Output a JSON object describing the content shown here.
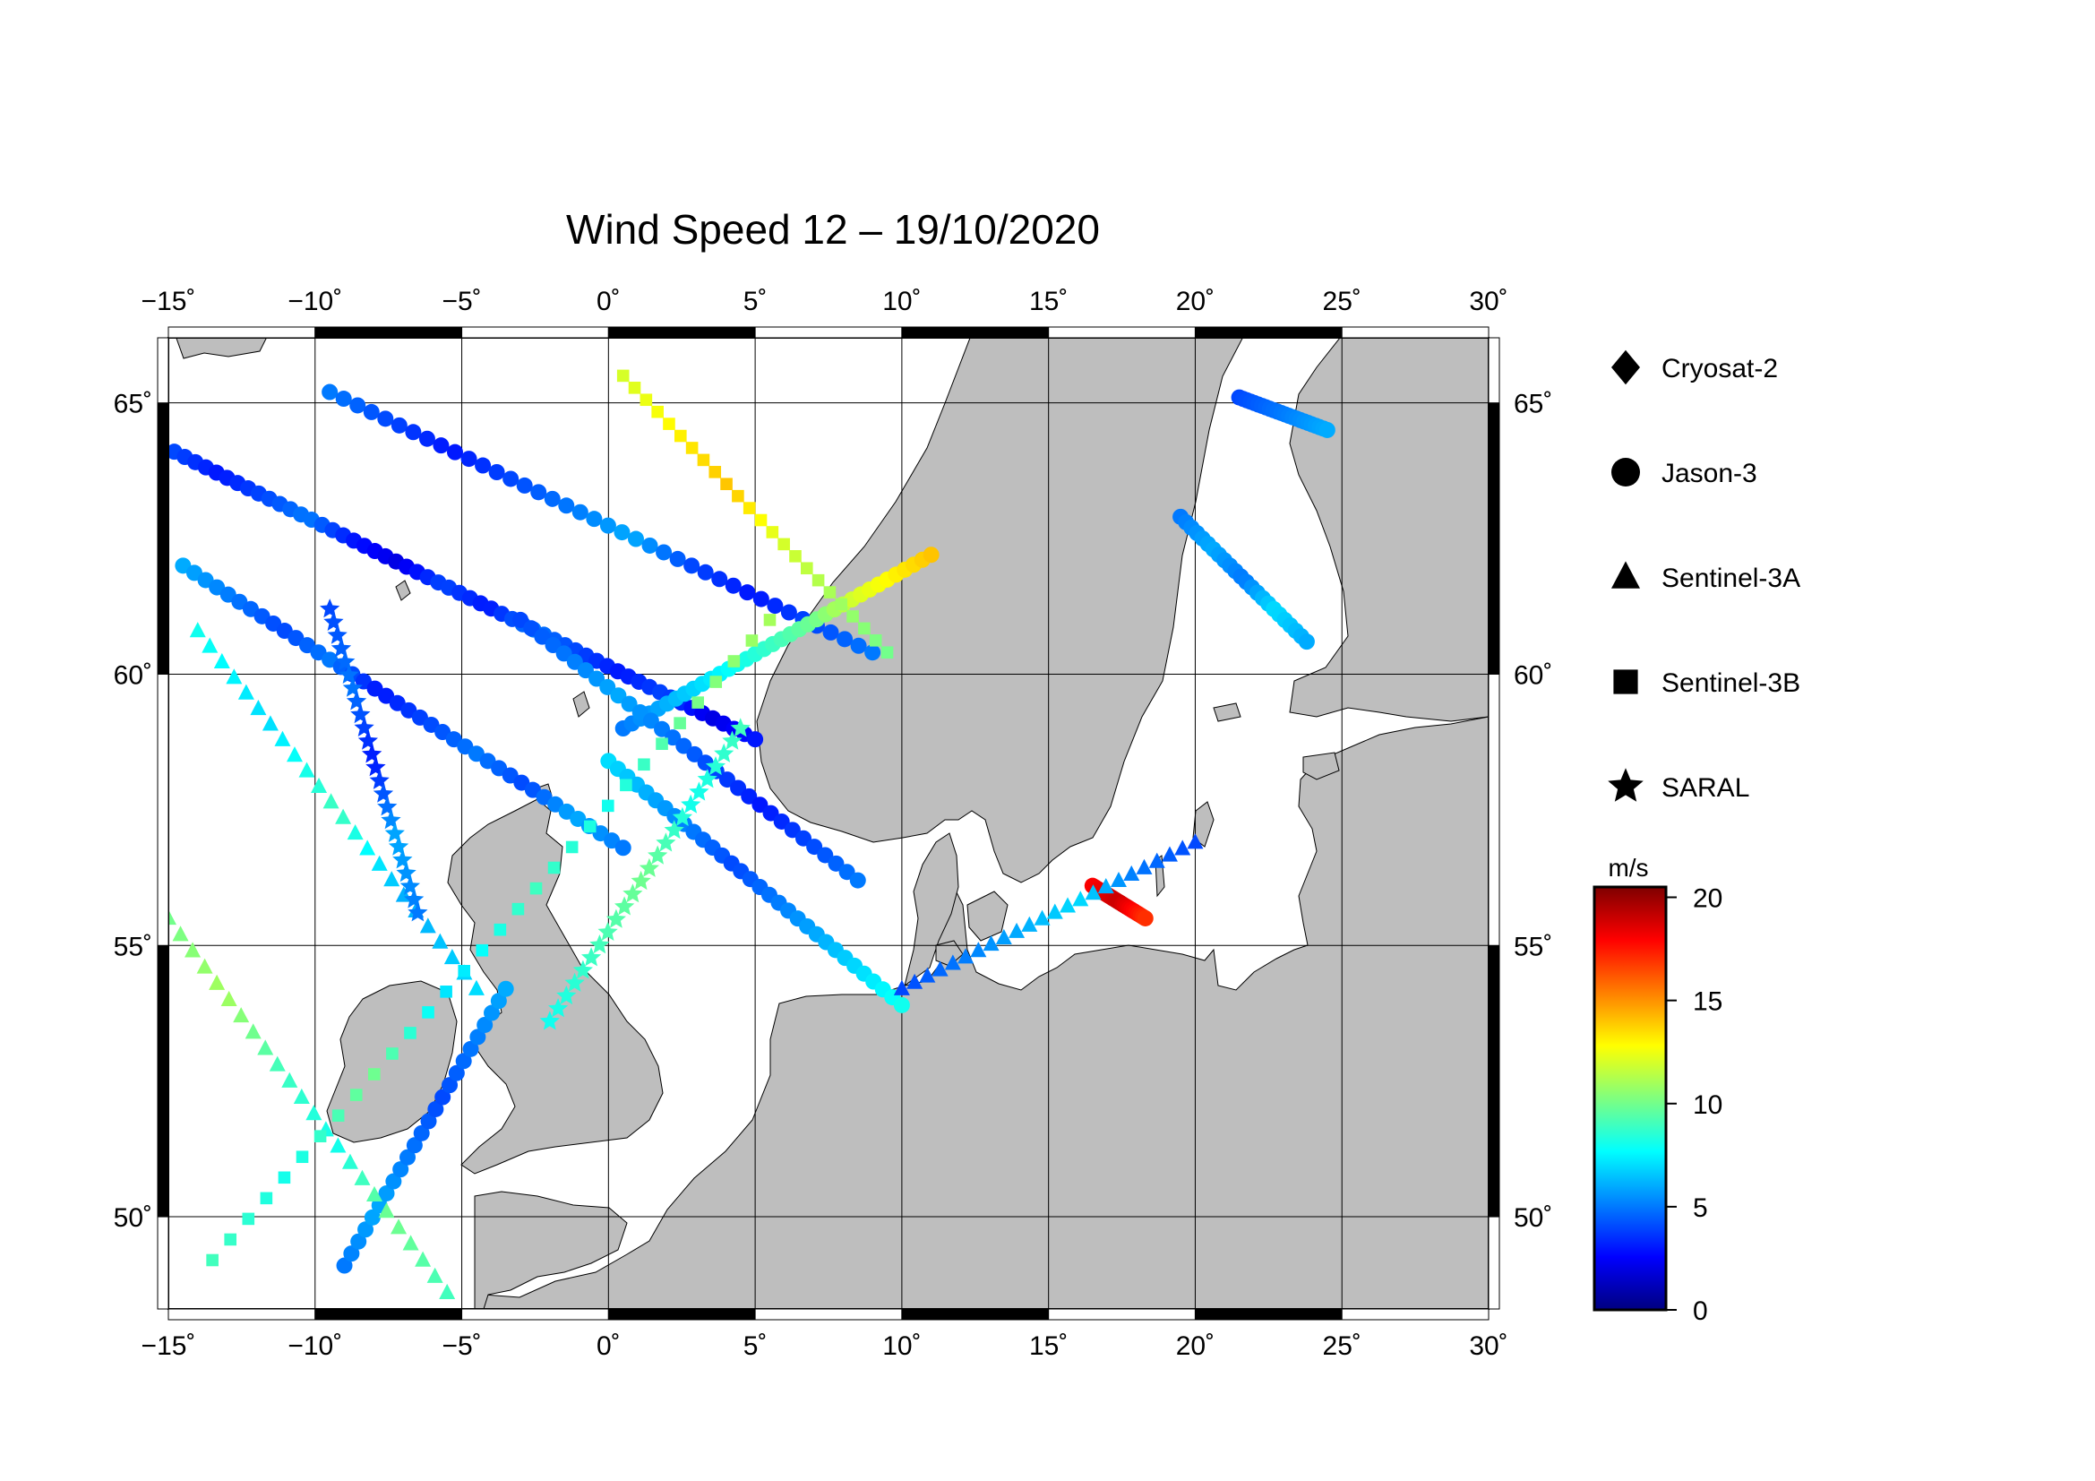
{
  "title": "Wind Speed 12 – 19/10/2020",
  "map": {
    "lon_range": [
      -15,
      30
    ],
    "lat_range": [
      48.3,
      66.2
    ],
    "lon_ticks": [
      {
        "value": -15,
        "label": "−15˚"
      },
      {
        "value": -10,
        "label": "−10˚"
      },
      {
        "value": -5,
        "label": "−5˚"
      },
      {
        "value": 0,
        "label": "0˚"
      },
      {
        "value": 5,
        "label": "5˚"
      },
      {
        "value": 10,
        "label": "10˚"
      },
      {
        "value": 15,
        "label": "15˚"
      },
      {
        "value": 20,
        "label": "20˚"
      },
      {
        "value": 25,
        "label": "25˚"
      },
      {
        "value": 30,
        "label": "30˚"
      }
    ],
    "lat_ticks": [
      {
        "value": 50,
        "label": "50˚"
      },
      {
        "value": 55,
        "label": "55˚"
      },
      {
        "value": 60,
        "label": "60˚"
      },
      {
        "value": 65,
        "label": "65˚"
      }
    ],
    "land_color": "#bebebe",
    "sea_color": "#ffffff",
    "grid": true
  },
  "legend": {
    "placement": "right",
    "items": [
      {
        "label": "Cryosat-2",
        "marker": "diamond"
      },
      {
        "label": "Jason-3",
        "marker": "circle"
      },
      {
        "label": "Sentinel-3A",
        "marker": "triangle"
      },
      {
        "label": "Sentinel-3B",
        "marker": "square"
      },
      {
        "label": "SARAL",
        "marker": "star"
      }
    ]
  },
  "colorbar": {
    "unit": "m/s",
    "range": [
      0,
      20.5
    ],
    "ticks": [
      {
        "value": 0,
        "label": "0"
      },
      {
        "value": 5,
        "label": "5"
      },
      {
        "value": 10,
        "label": "10"
      },
      {
        "value": 15,
        "label": "15"
      },
      {
        "value": 20,
        "label": "20"
      }
    ],
    "colormap": [
      "#00007f",
      "#0000ff",
      "#007fff",
      "#00ffff",
      "#7fff7f",
      "#ffff00",
      "#ff7f00",
      "#ff0000",
      "#7f0000"
    ]
  },
  "chart_data": {
    "type": "scatter",
    "title": "Wind Speed 12 – 19/10/2020",
    "x_axis": "longitude",
    "y_axis": "latitude",
    "color_variable": "wind speed (m/s)",
    "tracks": [
      {
        "satellite": "Jason-3",
        "marker": "circle",
        "lon": [
          -14.8,
          5.0
        ],
        "lat": [
          64.1,
          58.8
        ],
        "speeds": [
          4,
          3,
          4,
          5,
          3,
          2,
          4,
          3,
          5,
          4,
          3,
          4,
          2,
          3
        ]
      },
      {
        "satellite": "Jason-3",
        "marker": "circle",
        "lon": [
          -14.5,
          0.5
        ],
        "lat": [
          62.0,
          56.8
        ],
        "speeds": [
          6,
          5,
          4,
          5,
          3,
          4,
          5,
          4,
          6,
          5
        ]
      },
      {
        "satellite": "Jason-3",
        "marker": "circle",
        "lon": [
          -9.5,
          9.0
        ],
        "lat": [
          65.2,
          60.4
        ],
        "speeds": [
          5,
          4,
          3,
          4,
          5,
          6,
          4,
          3,
          4,
          5
        ]
      },
      {
        "satellite": "Jason-3",
        "marker": "circle",
        "lon": [
          0.5,
          11.0
        ],
        "lat": [
          59.0,
          62.2
        ],
        "speeds": [
          5,
          6,
          7,
          8,
          9,
          10,
          12,
          13,
          14
        ]
      },
      {
        "satellite": "Jason-3",
        "marker": "circle",
        "lon": [
          -3.0,
          8.5
        ],
        "lat": [
          61.0,
          56.2
        ],
        "speeds": [
          4,
          5,
          6,
          5,
          4,
          3,
          4,
          5
        ]
      },
      {
        "satellite": "Jason-3",
        "marker": "circle",
        "lon": [
          0.0,
          10.0
        ],
        "lat": [
          58.4,
          53.9
        ],
        "speeds": [
          7,
          6,
          5,
          4,
          5,
          6,
          7,
          8
        ]
      },
      {
        "satellite": "Jason-3",
        "marker": "circle",
        "lon": [
          -9.0,
          -3.5
        ],
        "lat": [
          49.1,
          54.2
        ],
        "speeds": [
          5,
          6,
          5,
          4,
          5,
          6
        ]
      },
      {
        "satellite": "Jason-3",
        "marker": "circle",
        "lon": [
          19.5,
          23.8
        ],
        "lat": [
          62.9,
          60.6
        ],
        "speeds": [
          5,
          6,
          5,
          7,
          6
        ]
      },
      {
        "satellite": "Jason-3",
        "marker": "circle",
        "lon": [
          16.5,
          18.3
        ],
        "lat": [
          56.1,
          55.5
        ],
        "speeds": [
          18,
          19,
          17
        ]
      },
      {
        "satellite": "Jason-3",
        "marker": "circle",
        "lon": [
          21.5,
          24.5
        ],
        "lat": [
          65.1,
          64.5
        ],
        "speeds": [
          4,
          5,
          6
        ]
      },
      {
        "satellite": "Sentinel-3A",
        "marker": "triangle",
        "lon": [
          -15.0,
          -5.5
        ],
        "lat": [
          55.5,
          48.6
        ],
        "speeds": [
          10,
          11,
          9,
          8,
          10,
          9
        ]
      },
      {
        "satellite": "Sentinel-3A",
        "marker": "triangle",
        "lon": [
          -14.0,
          -4.5
        ],
        "lat": [
          60.8,
          54.2
        ],
        "speeds": [
          8,
          7,
          9,
          6,
          7
        ]
      },
      {
        "satellite": "Sentinel-3A",
        "marker": "triangle",
        "lon": [
          10.0,
          20.0
        ],
        "lat": [
          54.2,
          56.9
        ],
        "speeds": [
          4,
          5,
          6,
          7,
          5,
          4
        ]
      },
      {
        "satellite": "Sentinel-3B",
        "marker": "square",
        "lon": [
          -13.5,
          5.5
        ],
        "lat": [
          49.2,
          61.0
        ],
        "speeds": [
          9,
          8,
          10,
          7,
          9,
          8,
          10,
          11
        ]
      },
      {
        "satellite": "Sentinel-3B",
        "marker": "square",
        "lon": [
          0.5,
          9.5
        ],
        "lat": [
          65.5,
          60.4
        ],
        "speeds": [
          12,
          13,
          14,
          12,
          11,
          10
        ]
      },
      {
        "satellite": "SARAL",
        "marker": "star",
        "lon": [
          -9.5,
          -6.5
        ],
        "lat": [
          61.2,
          55.6
        ],
        "speeds": [
          4,
          5,
          3,
          6,
          5
        ]
      },
      {
        "satellite": "SARAL",
        "marker": "star",
        "lon": [
          -2.0,
          4.5
        ],
        "lat": [
          53.6,
          59.0
        ],
        "speeds": [
          8,
          9,
          10,
          8,
          9
        ]
      }
    ]
  }
}
